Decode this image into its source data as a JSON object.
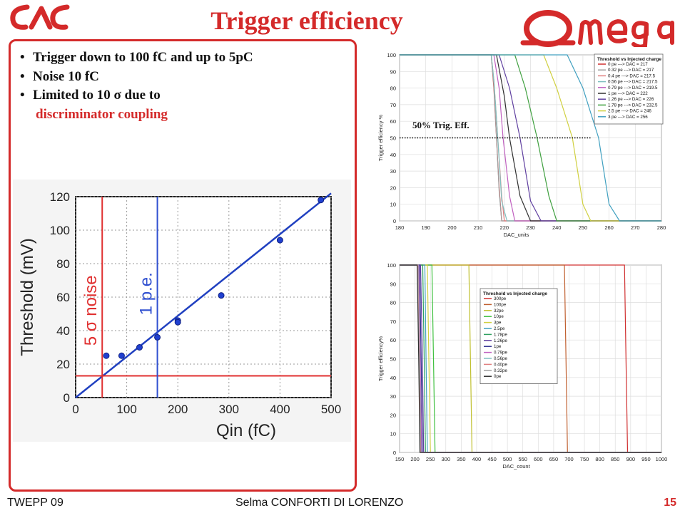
{
  "header": {
    "title": "Trigger efficiency",
    "lal_logo_text": "LAL",
    "omega_logo_text": "Omega"
  },
  "bullets": {
    "b1": "Trigger down to 100 fC and up to 5pC",
    "b2": "Noise 10 fC",
    "b3": "Limited to 10 σ due to",
    "b3_cont": "discriminator coupling"
  },
  "annotation_50": "50% Trig. Eff.",
  "footer": {
    "left": "TWEPP 09",
    "center": "Selma CONFORTI DI LORENZO",
    "page": "15"
  },
  "chart_data": [
    {
      "type": "scatter",
      "xlabel": "Qin (fC)",
      "ylabel": "Threshold (mV)",
      "xlim": [
        0,
        500
      ],
      "ylim": [
        0,
        120
      ],
      "xticks": [
        0,
        100,
        200,
        300,
        400,
        500
      ],
      "yticks": [
        0,
        20,
        40,
        60,
        80,
        100,
        120
      ],
      "grid": true,
      "points": [
        {
          "x": 60,
          "y": 25
        },
        {
          "x": 90,
          "y": 25
        },
        {
          "x": 125,
          "y": 30
        },
        {
          "x": 160,
          "y": 36
        },
        {
          "x": 200,
          "y": 46
        },
        {
          "x": 200,
          "y": 45
        },
        {
          "x": 285,
          "y": 61
        },
        {
          "x": 400,
          "y": 94
        },
        {
          "x": 480,
          "y": 118
        }
      ],
      "fit_line": {
        "x": [
          0,
          500
        ],
        "y": [
          0,
          122
        ]
      },
      "markers": [
        {
          "label": "5 σ noise",
          "x": 52,
          "h_y": 13,
          "color": "#e03030"
        },
        {
          "label": "1 p.e.",
          "x": 160,
          "color": "#3050d0"
        }
      ]
    },
    {
      "type": "line",
      "title": "",
      "xlabel": "DAC_units",
      "ylabel": "Trigger efficiency %",
      "xlim": [
        180,
        280
      ],
      "ylim": [
        0,
        100
      ],
      "xticks": [
        180,
        190,
        200,
        210,
        220,
        230,
        240,
        250,
        260,
        270,
        280
      ],
      "yticks": [
        0,
        10,
        20,
        30,
        40,
        50,
        60,
        70,
        80,
        90,
        100
      ],
      "legend_title": "Threshold vs Injected charge",
      "legend_position": "top-right",
      "reference_line": {
        "y": 50,
        "label": "50% Trig. Eff."
      },
      "series": [
        {
          "name": "0 pe ---> DAC = 217",
          "color": "#d03030",
          "x": [
            180,
            215,
            216,
            217,
            218,
            219,
            280
          ],
          "y": [
            100,
            100,
            80,
            50,
            20,
            0,
            0
          ]
        },
        {
          "name": "0.32 pe ---> DAC = 217",
          "color": "#a0a0a0",
          "x": [
            180,
            215,
            216,
            217,
            218,
            219,
            280
          ],
          "y": [
            100,
            100,
            82,
            50,
            18,
            0,
            0
          ]
        },
        {
          "name": "0.4 pe ---> DAC = 217.5",
          "color": "#e08080",
          "x": [
            180,
            215,
            216,
            217.5,
            219,
            220,
            280
          ],
          "y": [
            100,
            100,
            85,
            50,
            15,
            0,
            0
          ]
        },
        {
          "name": "0.56 pe ---> DAC = 217.5",
          "color": "#80c0c0",
          "x": [
            180,
            215,
            216,
            217.5,
            219,
            221,
            280
          ],
          "y": [
            100,
            100,
            85,
            50,
            12,
            0,
            0
          ]
        },
        {
          "name": "0.79 pe ---> DAC = 219.5",
          "color": "#c060c0",
          "x": [
            180,
            216,
            218,
            219.5,
            222,
            224,
            280
          ],
          "y": [
            100,
            100,
            80,
            50,
            15,
            0,
            0
          ]
        },
        {
          "name": "1 pe ---> DAC = 222",
          "color": "#303030",
          "x": [
            180,
            217,
            220,
            222,
            226,
            230,
            280
          ],
          "y": [
            100,
            100,
            75,
            50,
            15,
            0,
            0
          ]
        },
        {
          "name": "1.26 pe ---> DAC = 226",
          "color": "#6040a0",
          "x": [
            180,
            218,
            222,
            226,
            230,
            234,
            280
          ],
          "y": [
            100,
            100,
            80,
            50,
            12,
            0,
            0
          ]
        },
        {
          "name": "1.78 pe ---> DAC = 232.5",
          "color": "#40a040",
          "x": [
            180,
            224,
            228,
            232.5,
            237,
            240,
            280
          ],
          "y": [
            100,
            100,
            80,
            50,
            15,
            0,
            0
          ]
        },
        {
          "name": "2.5 pe ---> DAC = 246",
          "color": "#d0d040",
          "x": [
            180,
            235,
            240,
            246,
            250,
            253,
            280
          ],
          "y": [
            100,
            100,
            80,
            50,
            10,
            0,
            0
          ]
        },
        {
          "name": "3 pe ---> DAC = 256",
          "color": "#40a0c0",
          "x": [
            180,
            244,
            250,
            256,
            260,
            264,
            280
          ],
          "y": [
            100,
            100,
            80,
            50,
            10,
            0,
            0
          ]
        }
      ]
    },
    {
      "type": "line",
      "xlabel": "DAC_count",
      "ylabel": "Trigger efficiency%",
      "xlim": [
        150,
        1000
      ],
      "ylim": [
        0,
        100
      ],
      "xticks": [
        150,
        200,
        250,
        300,
        350,
        400,
        450,
        500,
        550,
        600,
        650,
        700,
        750,
        800,
        850,
        900,
        950,
        1000
      ],
      "yticks": [
        0,
        10,
        20,
        30,
        40,
        50,
        60,
        70,
        80,
        90,
        100
      ],
      "legend_title": "Threshold vs Injected charge",
      "legend_position": "center",
      "series": [
        {
          "name": "300pe",
          "color": "#d03030",
          "x": [
            150,
            880,
            885,
            890,
            1000
          ],
          "y": [
            100,
            100,
            50,
            0,
            0
          ]
        },
        {
          "name": "100pe",
          "color": "#c06030",
          "x": [
            150,
            685,
            690,
            695,
            1000
          ],
          "y": [
            100,
            100,
            50,
            0,
            0
          ]
        },
        {
          "name": "32pe",
          "color": "#c0c030",
          "x": [
            150,
            375,
            380,
            385,
            1000
          ],
          "y": [
            100,
            100,
            50,
            0,
            0
          ]
        },
        {
          "name": "10pe",
          "color": "#40c040",
          "x": [
            150,
            255,
            260,
            265,
            1000
          ],
          "y": [
            100,
            100,
            50,
            0,
            0
          ]
        },
        {
          "name": "3pe",
          "color": "#d0d040",
          "x": [
            150,
            240,
            245,
            250,
            1000
          ],
          "y": [
            100,
            100,
            50,
            0,
            0
          ]
        },
        {
          "name": "2.5pe",
          "color": "#40a0c0",
          "x": [
            150,
            232,
            236,
            240,
            1000
          ],
          "y": [
            100,
            100,
            50,
            0,
            0
          ]
        },
        {
          "name": "1.78pe",
          "color": "#30a060",
          "x": [
            150,
            225,
            230,
            234,
            1000
          ],
          "y": [
            100,
            100,
            50,
            0,
            0
          ]
        },
        {
          "name": "1.26pe",
          "color": "#6040a0",
          "x": [
            150,
            218,
            224,
            228,
            1000
          ],
          "y": [
            100,
            100,
            50,
            0,
            0
          ]
        },
        {
          "name": "1pe",
          "color": "#303090",
          "x": [
            150,
            215,
            220,
            224,
            1000
          ],
          "y": [
            100,
            100,
            50,
            0,
            0
          ]
        },
        {
          "name": "0.79pe",
          "color": "#c060c0",
          "x": [
            150,
            212,
            217,
            221,
            1000
          ],
          "y": [
            100,
            100,
            50,
            0,
            0
          ]
        },
        {
          "name": "0.56pe",
          "color": "#80c0c0",
          "x": [
            150,
            210,
            215,
            219,
            1000
          ],
          "y": [
            100,
            100,
            50,
            0,
            0
          ]
        },
        {
          "name": "0.40pe",
          "color": "#e08080",
          "x": [
            150,
            209,
            214,
            218,
            1000
          ],
          "y": [
            100,
            100,
            50,
            0,
            0
          ]
        },
        {
          "name": "0.32pe",
          "color": "#a0a0a0",
          "x": [
            150,
            208,
            213,
            217,
            1000
          ],
          "y": [
            100,
            100,
            50,
            0,
            0
          ]
        },
        {
          "name": "0pe",
          "color": "#303030",
          "x": [
            150,
            207,
            212,
            216,
            1000
          ],
          "y": [
            100,
            100,
            50,
            0,
            0
          ]
        }
      ]
    }
  ]
}
